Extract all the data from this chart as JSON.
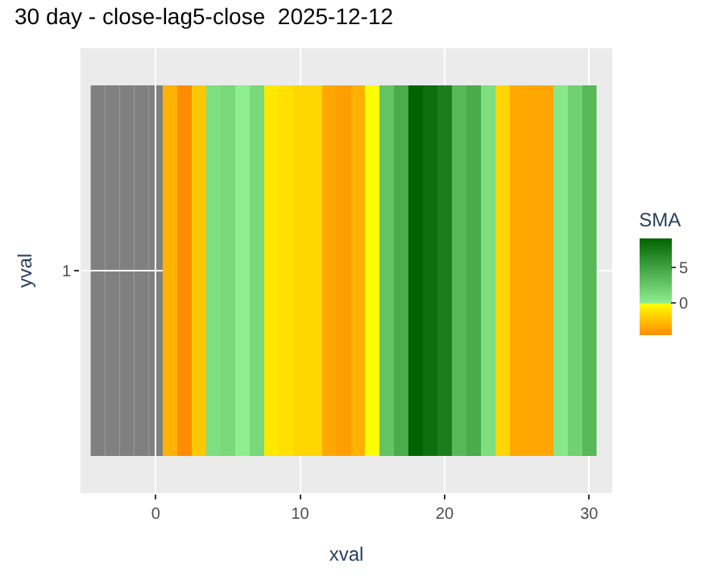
{
  "chart_data": {
    "type": "heatmap",
    "title": "30 day - close-lag5-close  2025-12-12",
    "xlabel": "xval",
    "ylabel": "yval",
    "clabel": "SMA",
    "x": [
      -4,
      -3,
      -2,
      -1,
      0,
      1,
      2,
      3,
      4,
      5,
      6,
      7,
      8,
      9,
      10,
      11,
      12,
      13,
      14,
      15,
      16,
      17,
      18,
      19,
      20,
      21,
      22,
      23,
      24,
      25,
      26,
      27,
      28,
      29,
      30
    ],
    "y_categories": [
      "1"
    ],
    "cells": [
      [
        null,
        null,
        null,
        null,
        null,
        -3,
        -4.5,
        -2.2,
        1.1,
        1.5,
        0.1,
        1.5,
        -0.9,
        -1.2,
        -1.6,
        -1.6,
        -3.5,
        -3.8,
        -3.1,
        0,
        2.8,
        4.5,
        9.2,
        8.4,
        7.5,
        3.6,
        4.5,
        1.1,
        -1.6,
        -3.4,
        -3.5,
        -3.5,
        0.5,
        2,
        3.6
      ]
    ],
    "clim": [
      -4.5,
      9.2
    ],
    "cticks": [
      0,
      5
    ],
    "xlim": [
      -5.2,
      31.6
    ],
    "xticks": [
      0,
      10,
      20,
      30
    ],
    "grid": true
  }
}
